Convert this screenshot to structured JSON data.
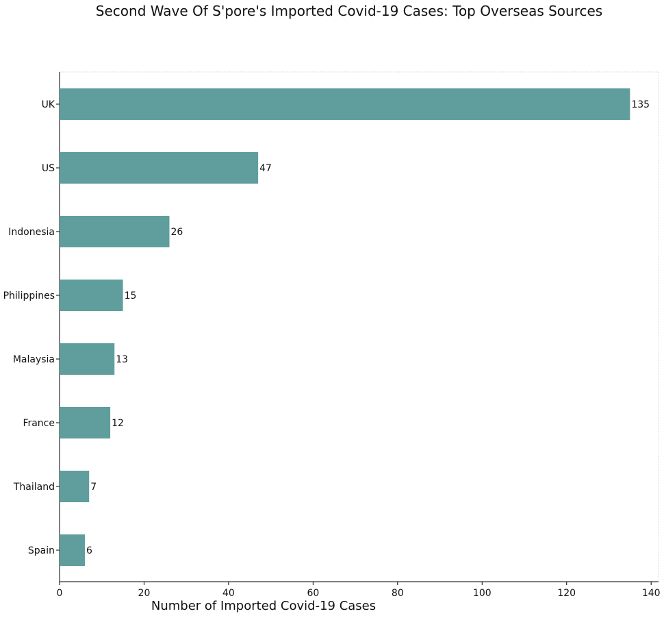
{
  "chart_data": {
    "type": "bar",
    "orientation": "horizontal",
    "title": "Second Wave Of S'pore's Imported Covid-19 Cases: Top Overseas Sources",
    "xlabel": "Number of Imported Covid-19 Cases",
    "ylabel": "",
    "categories": [
      "UK",
      "US",
      "Indonesia",
      "Philippines",
      "Malaysia",
      "France",
      "Thailand",
      "Spain"
    ],
    "values": [
      135,
      47,
      26,
      15,
      13,
      12,
      7,
      6
    ],
    "data_labels": [
      "135",
      "47",
      "26",
      "15",
      "13",
      "12",
      "7",
      "6"
    ],
    "xlim": [
      0,
      141.75
    ],
    "x_ticks": [
      0,
      20,
      40,
      60,
      80,
      100,
      120,
      140
    ],
    "x_tick_labels": [
      "0",
      "20",
      "40",
      "60",
      "80",
      "100",
      "120",
      "140"
    ],
    "bar_color": "#5f9e9c",
    "grid": false,
    "legend": "none"
  }
}
